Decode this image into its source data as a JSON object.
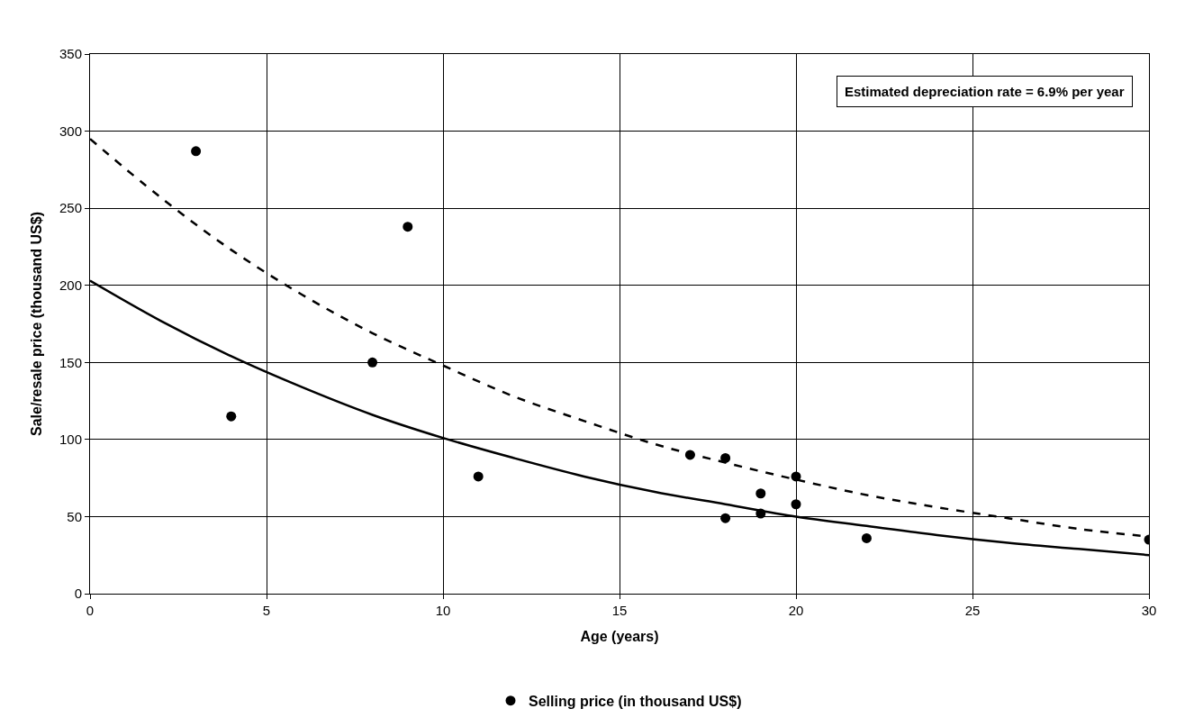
{
  "chart_data": {
    "type": "scatter",
    "xlabel": "Age (years)",
    "ylabel": "Sale/resale price (thousand US$)",
    "annotations": [
      "Estimated depreciation rate = 6.9% per year"
    ],
    "xlim": [
      0,
      30
    ],
    "xticks": [
      0,
      5,
      10,
      15,
      20,
      25,
      30
    ],
    "ylim": [
      0,
      350
    ],
    "yticks": [
      0,
      50,
      100,
      150,
      200,
      250,
      300,
      350
    ],
    "grid": true,
    "legend": "bottom",
    "series": [
      {
        "name": "Selling price (in thousand US$)",
        "marker": "circle",
        "color": "#000000",
        "x": [
          3,
          4,
          8,
          9,
          11,
          17,
          18,
          18,
          19,
          19,
          20,
          20,
          22,
          30
        ],
        "values": [
          287,
          115,
          150,
          238,
          76,
          90,
          88,
          49,
          65,
          52,
          76,
          58,
          36,
          35
        ]
      },
      {
        "type": "line",
        "line_style": "dashed",
        "color": "#000000",
        "x": [
          0,
          2,
          4,
          6,
          8,
          10,
          12,
          14,
          16,
          18,
          20,
          22,
          24,
          26,
          28,
          30
        ],
        "values": [
          295,
          257,
          223,
          194,
          169,
          148,
          128,
          112,
          97,
          85,
          74,
          64,
          56,
          49,
          42,
          37
        ]
      },
      {
        "type": "line",
        "line_style": "solid",
        "color": "#000000",
        "x": [
          0,
          2,
          4,
          6,
          8,
          10,
          12,
          14,
          16,
          18,
          20,
          22,
          24,
          26,
          28,
          30
        ],
        "values": [
          203,
          177,
          154,
          134,
          116,
          101,
          88,
          76,
          66,
          58,
          50,
          44,
          38,
          33,
          29,
          25
        ]
      }
    ]
  }
}
